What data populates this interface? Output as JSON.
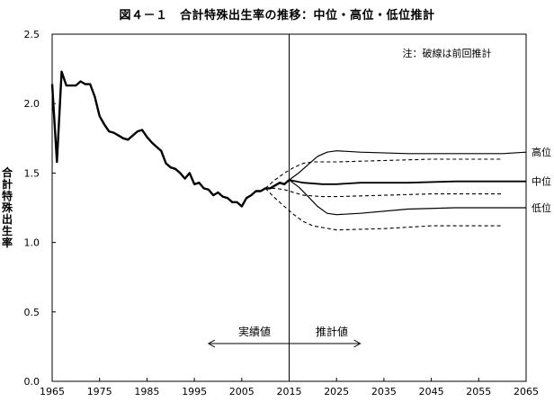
{
  "chart_data": {
    "type": "line",
    "title": "図４－１　合計特殊出生率の推移：中位・高位・低位推計",
    "ylabel": "合計特殊出生率",
    "xlabel": "",
    "note": "注：破線は前回推計",
    "xlim": [
      1965,
      2065
    ],
    "ylim": [
      0.0,
      2.5
    ],
    "xticks": [
      "1965",
      "1975",
      "1985",
      "1995",
      "2005",
      "2015",
      "2025",
      "2035",
      "2045",
      "2055",
      "2065"
    ],
    "yticks": [
      "0.0",
      "0.5",
      "1.0",
      "1.5",
      "2.0",
      "2.5"
    ],
    "vline_x": 2015,
    "arrow_actual_label": "実績値",
    "arrow_projected_label": "推計値",
    "series": [
      {
        "name": "実績値",
        "style": "solid-thick",
        "points": [
          [
            1965,
            2.14
          ],
          [
            1966,
            1.58
          ],
          [
            1967,
            2.23
          ],
          [
            1968,
            2.13
          ],
          [
            1969,
            2.13
          ],
          [
            1970,
            2.13
          ],
          [
            1971,
            2.16
          ],
          [
            1972,
            2.14
          ],
          [
            1973,
            2.14
          ],
          [
            1974,
            2.05
          ],
          [
            1975,
            1.91
          ],
          [
            1976,
            1.85
          ],
          [
            1977,
            1.8
          ],
          [
            1978,
            1.79
          ],
          [
            1979,
            1.77
          ],
          [
            1980,
            1.75
          ],
          [
            1981,
            1.74
          ],
          [
            1982,
            1.77
          ],
          [
            1983,
            1.8
          ],
          [
            1984,
            1.81
          ],
          [
            1985,
            1.76
          ],
          [
            1986,
            1.72
          ],
          [
            1987,
            1.69
          ],
          [
            1988,
            1.66
          ],
          [
            1989,
            1.57
          ],
          [
            1990,
            1.54
          ],
          [
            1991,
            1.53
          ],
          [
            1992,
            1.5
          ],
          [
            1993,
            1.46
          ],
          [
            1994,
            1.5
          ],
          [
            1995,
            1.42
          ],
          [
            1996,
            1.43
          ],
          [
            1997,
            1.39
          ],
          [
            1998,
            1.38
          ],
          [
            1999,
            1.34
          ],
          [
            2000,
            1.36
          ],
          [
            2001,
            1.33
          ],
          [
            2002,
            1.32
          ],
          [
            2003,
            1.29
          ],
          [
            2004,
            1.29
          ],
          [
            2005,
            1.26
          ],
          [
            2006,
            1.32
          ],
          [
            2007,
            1.34
          ],
          [
            2008,
            1.37
          ],
          [
            2009,
            1.37
          ],
          [
            2010,
            1.39
          ],
          [
            2011,
            1.39
          ],
          [
            2012,
            1.41
          ],
          [
            2013,
            1.43
          ],
          [
            2014,
            1.42
          ],
          [
            2015,
            1.45
          ]
        ]
      },
      {
        "name": "高位",
        "style": "solid",
        "points": [
          [
            2015,
            1.45
          ],
          [
            2017,
            1.5
          ],
          [
            2019,
            1.56
          ],
          [
            2021,
            1.62
          ],
          [
            2023,
            1.65
          ],
          [
            2025,
            1.66
          ],
          [
            2030,
            1.65
          ],
          [
            2040,
            1.64
          ],
          [
            2050,
            1.64
          ],
          [
            2060,
            1.64
          ],
          [
            2065,
            1.65
          ]
        ]
      },
      {
        "name": "中位",
        "style": "solid-medium",
        "points": [
          [
            2015,
            1.45
          ],
          [
            2018,
            1.43
          ],
          [
            2022,
            1.42
          ],
          [
            2025,
            1.42
          ],
          [
            2030,
            1.43
          ],
          [
            2040,
            1.43
          ],
          [
            2050,
            1.44
          ],
          [
            2060,
            1.44
          ],
          [
            2065,
            1.44
          ]
        ]
      },
      {
        "name": "低位",
        "style": "solid",
        "points": [
          [
            2015,
            1.45
          ],
          [
            2017,
            1.4
          ],
          [
            2019,
            1.33
          ],
          [
            2021,
            1.26
          ],
          [
            2023,
            1.21
          ],
          [
            2025,
            1.2
          ],
          [
            2030,
            1.21
          ],
          [
            2040,
            1.24
          ],
          [
            2050,
            1.25
          ],
          [
            2060,
            1.25
          ],
          [
            2065,
            1.25
          ]
        ]
      },
      {
        "name": "前回推計（高位）",
        "style": "dashed",
        "points": [
          [
            2010,
            1.39
          ],
          [
            2012,
            1.45
          ],
          [
            2014,
            1.5
          ],
          [
            2016,
            1.54
          ],
          [
            2018,
            1.57
          ],
          [
            2020,
            1.58
          ],
          [
            2025,
            1.58
          ],
          [
            2035,
            1.59
          ],
          [
            2045,
            1.6
          ],
          [
            2060,
            1.6
          ]
        ]
      },
      {
        "name": "前回推計（中位）",
        "style": "dashed",
        "points": [
          [
            2010,
            1.39
          ],
          [
            2012,
            1.39
          ],
          [
            2014,
            1.38
          ],
          [
            2016,
            1.36
          ],
          [
            2018,
            1.34
          ],
          [
            2022,
            1.33
          ],
          [
            2025,
            1.33
          ],
          [
            2035,
            1.34
          ],
          [
            2045,
            1.35
          ],
          [
            2060,
            1.35
          ]
        ]
      },
      {
        "name": "前回推計（低位）",
        "style": "dashed",
        "points": [
          [
            2010,
            1.39
          ],
          [
            2012,
            1.32
          ],
          [
            2014,
            1.26
          ],
          [
            2016,
            1.2
          ],
          [
            2018,
            1.15
          ],
          [
            2020,
            1.12
          ],
          [
            2025,
            1.09
          ],
          [
            2035,
            1.1
          ],
          [
            2045,
            1.12
          ],
          [
            2060,
            1.12
          ]
        ]
      }
    ],
    "end_labels": [
      {
        "text": "高位",
        "y": 1.65
      },
      {
        "text": "中位",
        "y": 1.44
      },
      {
        "text": "低位",
        "y": 1.25
      }
    ]
  }
}
